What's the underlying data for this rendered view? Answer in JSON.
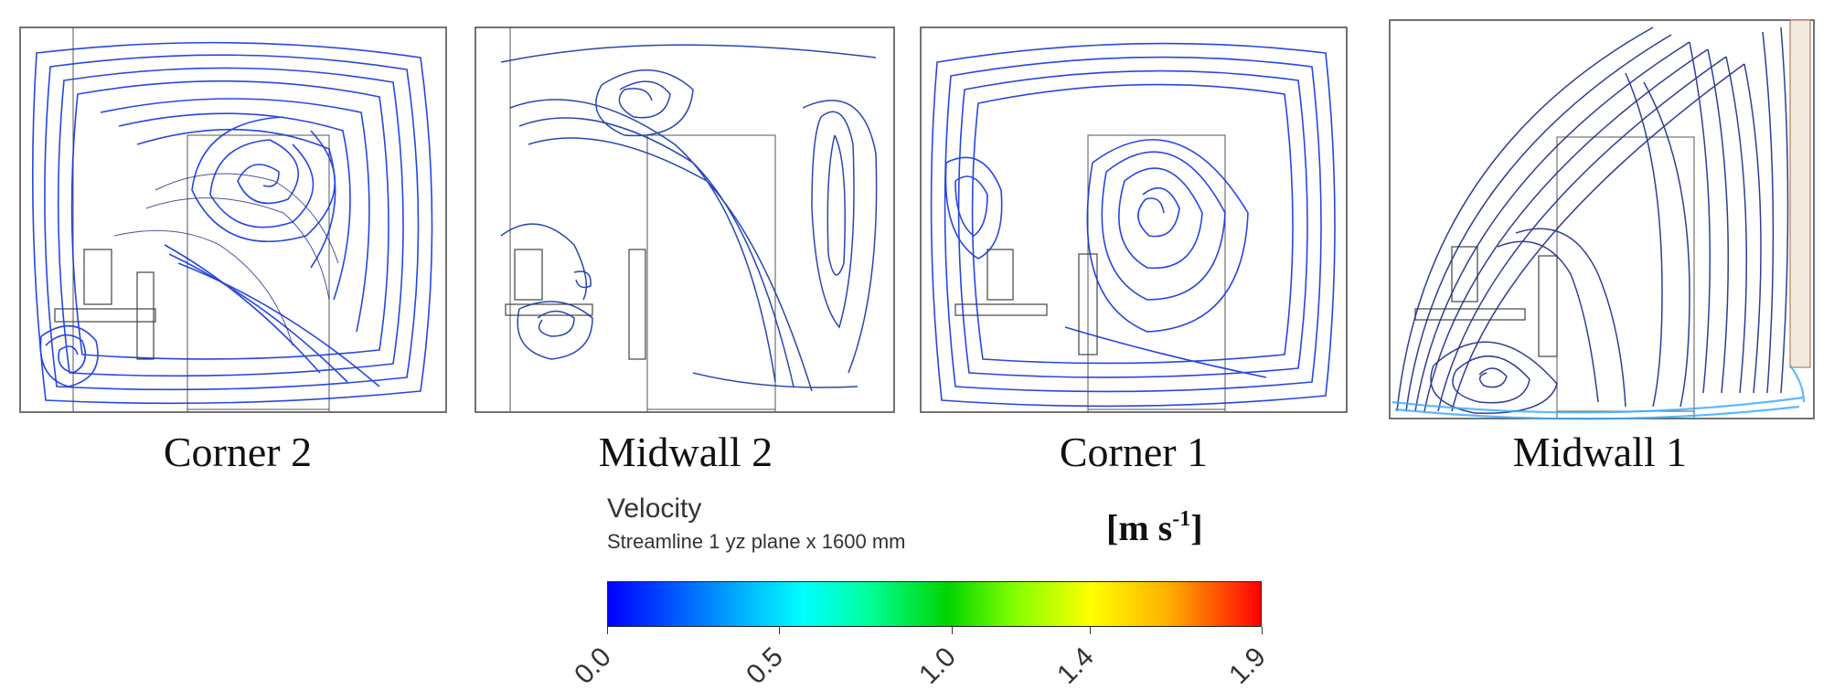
{
  "panels": [
    {
      "caption": "Corner 2"
    },
    {
      "caption": "Midwall 2"
    },
    {
      "caption": "Corner 1"
    },
    {
      "caption": "Midwall 1"
    }
  ],
  "legend": {
    "title": "Velocity",
    "subtitle": "Streamline 1 yz plane x 1600 mm",
    "unit_main": "[m s",
    "unit_sup": "-1",
    "unit_close": "]",
    "ticks": [
      "0.0",
      "0.5",
      "1.0",
      "1.4",
      "1.9"
    ],
    "range": [
      0.0,
      1.9
    ],
    "tick_values": [
      0.0,
      0.5,
      1.0,
      1.4,
      1.9
    ],
    "colors": {
      "low": "#0000ff",
      "mid": "#00d400",
      "high": "#ff0000"
    }
  }
}
